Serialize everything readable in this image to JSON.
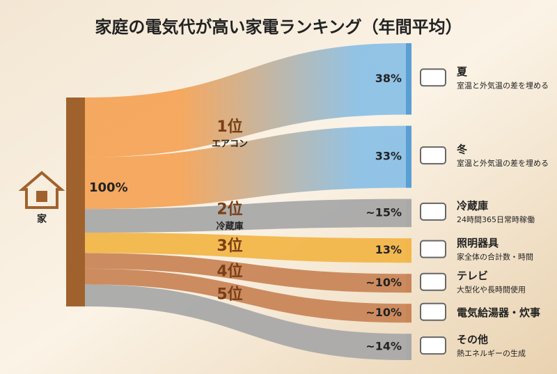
{
  "chart_data": {
    "type": "sankey",
    "title": "家庭の電気代が高い家電ランキング（年間平均）",
    "source": {
      "name": "家",
      "value": 100,
      "value_label": "100%",
      "color": "#a0622d"
    },
    "flows": [
      {
        "rank": "1位",
        "label": "エアコン",
        "color": "#f5a55a",
        "targets": [
          {
            "name": "夏",
            "note": "室温と外気温の差を埋める",
            "value": 38,
            "value_label": "38%",
            "color": "#8cc1e6"
          },
          {
            "name": "冬",
            "note": "室温と外気温の差を埋める",
            "value": 33,
            "value_label": "33%",
            "color": "#8cc1e6"
          }
        ]
      },
      {
        "rank": "2位",
        "label": "冷蔵庫",
        "color": "#a9a9a9",
        "targets": [
          {
            "name": "冷蔵庫",
            "note": "24時間365日常時稼働",
            "value": 15,
            "value_label": "~15%",
            "color": "#a9a9a9"
          }
        ]
      },
      {
        "rank": "3位",
        "color": "#f2b64a",
        "targets": [
          {
            "name": "照明器具",
            "note": "家全体の合計数・時間",
            "value": 13,
            "value_label": "13%",
            "color": "#f2b64a"
          }
        ]
      },
      {
        "rank": "4位",
        "color": "#c98658",
        "targets": [
          {
            "name": "テレビ",
            "note": "大型化や長時間使用",
            "value": 10,
            "value_label": "~10%",
            "color": "#c98658"
          }
        ]
      },
      {
        "rank": "5位",
        "color": "#c98658",
        "targets": [
          {
            "name": "電気給湯器・炊事",
            "value": 10,
            "value_label": "~10%",
            "color": "#c98658"
          }
        ]
      },
      {
        "color": "#a9a9a9",
        "targets": [
          {
            "name": "その他",
            "note": "熱エネルギーの生成",
            "value": 14,
            "value_label": "~14%",
            "color": "#a9a9a9"
          }
        ]
      }
    ]
  }
}
